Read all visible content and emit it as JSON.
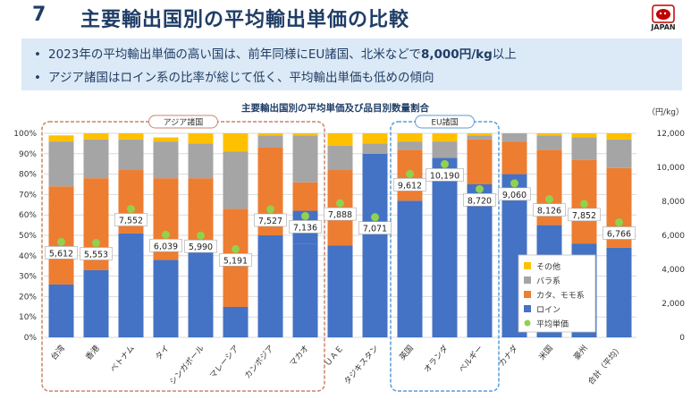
{
  "header": {
    "number": "7",
    "title": "主要輸出国別の平均輸出単価の比較",
    "logo_text": "JAPAN"
  },
  "bullets": [
    {
      "pre": "2023年の平均輸出単価の高い国は、前年同様にEU諸国、北米などで",
      "bold": "8,000円/kg",
      "post": "以上"
    },
    {
      "pre": "アジア諸国はロイン系の比率が総じて低く、平均輸出単価も低めの傾向",
      "bold": "",
      "post": ""
    }
  ],
  "chart_data": {
    "type": "bar",
    "title": "主要輸出国別の平均単価及び品目別数量割合",
    "y_right_unit": "（円/kg）",
    "y_left_ticks": [
      "0%",
      "10%",
      "20%",
      "30%",
      "40%",
      "50%",
      "60%",
      "70%",
      "80%",
      "90%",
      "100%"
    ],
    "y_right_ticks": [
      "0",
      "2,000",
      "4,000",
      "6,000",
      "8,000",
      "10,000",
      "12,000"
    ],
    "ylim_left": [
      0,
      100
    ],
    "ylim_right": [
      0,
      12000
    ],
    "categories": [
      "台湾",
      "香港",
      "ベトナム",
      "タイ",
      "シンガポール",
      "マレーシア",
      "カンボジア",
      "マカオ",
      "ＵＡＥ",
      "タジキスタン",
      "英国",
      "オランダ",
      "ベルギー",
      "カナダ",
      "米国",
      "豪州",
      "合計（平均）"
    ],
    "series": [
      {
        "name": "ロイン",
        "color": "#4472c4",
        "values": [
          26,
          33,
          51,
          38,
          44,
          15,
          50,
          46,
          45,
          90,
          67,
          88,
          75,
          80,
          55,
          46,
          44
        ]
      },
      {
        "name": "カタ、モモ系",
        "color": "#ed7d31",
        "values": [
          48,
          45,
          31,
          40,
          34,
          48,
          43,
          30,
          37,
          0,
          25,
          0,
          22,
          16,
          37,
          41,
          39
        ]
      },
      {
        "name": "バラ系",
        "color": "#a5a5a5",
        "values": [
          22,
          19,
          15,
          18,
          17,
          28,
          6,
          23,
          12,
          5,
          4,
          8,
          2,
          4,
          7,
          11,
          14
        ]
      },
      {
        "name": "その他",
        "color": "#ffc000",
        "values": [
          3,
          3,
          3,
          2,
          5,
          9,
          1,
          1,
          6,
          5,
          4,
          4,
          1,
          0,
          1,
          2,
          3
        ]
      }
    ],
    "extra_segments": [
      {
        "index": 0,
        "color": "#ed7d31",
        "from": 26,
        "to": 34
      },
      {
        "index": 1,
        "color": "#ed7d31",
        "from": 33,
        "to": 34
      },
      {
        "index": 4,
        "color": "#4472c4",
        "from": 44,
        "to": 47
      },
      {
        "index": 5,
        "color": "#ed7d31",
        "from": 15,
        "to": 30
      },
      {
        "index": 7,
        "color": "#4472c4",
        "from": 46,
        "to": 62
      },
      {
        "index": 8,
        "color": "#ed7d31",
        "from": 45,
        "to": 53
      }
    ],
    "avg_price": {
      "name": "平均単価",
      "color": "#92d050",
      "values": [
        5612,
        5553,
        7552,
        6039,
        5990,
        5191,
        7527,
        7136,
        7888,
        7071,
        9612,
        10190,
        8720,
        9060,
        8126,
        7852,
        6766
      ],
      "labels": [
        "5,612",
        "5,553",
        "7,552",
        "6,039",
        "5,990",
        "5,191",
        "7,527",
        "7,136",
        "7,888",
        "7,071",
        "9,612",
        "10,190",
        "8,720",
        "9,060",
        "8,126",
        "7,852",
        "6,766"
      ]
    },
    "groups": [
      {
        "label": "アジア諸国",
        "from": 0,
        "to": 7,
        "color": "#c9866b"
      },
      {
        "label": "EU諸国",
        "from": 10,
        "to": 12,
        "color": "#5b9bd5"
      }
    ],
    "legend": [
      "その他",
      "バラ系",
      "カタ、モモ系",
      "ロイン",
      "平均単価"
    ],
    "legend_position": "lower-right"
  }
}
